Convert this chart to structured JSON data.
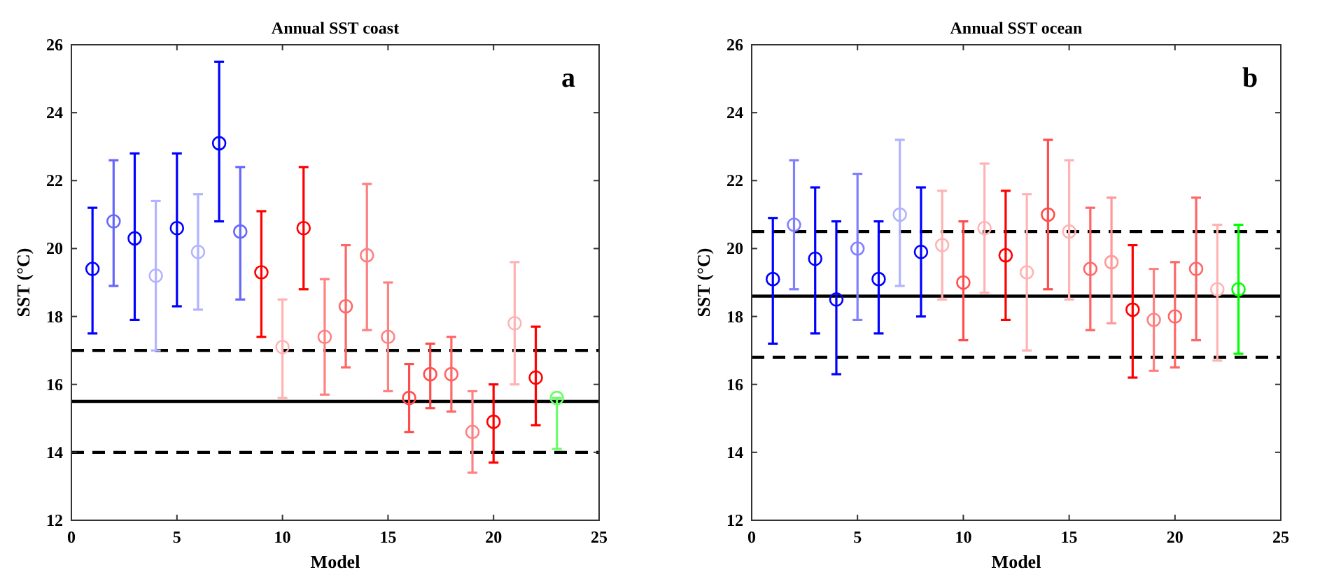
{
  "chart_data": [
    {
      "type": "scatter",
      "title": "Annual SST coast",
      "xlabel": "Model",
      "ylabel": "SST (°C)",
      "annotations": [
        "a"
      ],
      "xlim": [
        0,
        25
      ],
      "xticks": [
        0,
        5,
        10,
        15,
        20,
        25
      ],
      "ylim": [
        12,
        26
      ],
      "yticks": [
        12,
        14,
        16,
        18,
        20,
        22,
        24,
        26
      ],
      "grid": false,
      "marker": "circle",
      "ref_lines": [
        {
          "axis": "y",
          "value": 17,
          "color": "#000000",
          "line_style": "dashed"
        },
        {
          "axis": "y",
          "value": 15.5,
          "color": "#000000",
          "line_style": "solid"
        },
        {
          "axis": "y",
          "value": 14,
          "color": "#000000",
          "line_style": "dashed"
        }
      ],
      "series": [
        {
          "x": [
            1,
            2,
            3,
            4,
            5,
            6,
            7,
            8
          ],
          "values": [
            19.4,
            20.8,
            20.3,
            19.2,
            20.6,
            19.9,
            23.1,
            20.5
          ],
          "errors": [
            [
              17.5,
              21.2
            ],
            [
              18.9,
              22.6
            ],
            [
              17.9,
              22.8
            ],
            [
              17.0,
              21.4
            ],
            [
              18.3,
              22.8
            ],
            [
              18.2,
              21.6
            ],
            [
              20.8,
              25.5
            ],
            [
              18.5,
              22.4
            ]
          ],
          "colors": [
            "#0000ff",
            "#6666ff",
            "#0000ff",
            "#b3b3ff",
            "#0000ff",
            "#b3b3ff",
            "#0000ff",
            "#6666ff"
          ]
        },
        {
          "x": [
            9,
            10,
            11,
            12,
            13,
            14,
            15,
            16,
            17,
            18,
            19,
            20,
            21,
            22
          ],
          "values": [
            19.3,
            17.1,
            20.6,
            17.4,
            18.3,
            19.8,
            17.4,
            15.6,
            16.3,
            16.3,
            14.6,
            14.9,
            17.8,
            16.2
          ],
          "errors": [
            [
              17.4,
              21.1
            ],
            [
              15.6,
              18.5
            ],
            [
              18.8,
              22.4
            ],
            [
              15.7,
              19.1
            ],
            [
              16.5,
              20.1
            ],
            [
              17.6,
              21.9
            ],
            [
              15.8,
              19.0
            ],
            [
              14.6,
              16.6
            ],
            [
              15.3,
              17.2
            ],
            [
              15.2,
              17.4
            ],
            [
              13.4,
              15.8
            ],
            [
              13.7,
              16.0
            ],
            [
              16.0,
              19.6
            ],
            [
              14.8,
              17.7
            ]
          ],
          "colors": [
            "#ff0000",
            "#ffb3b3",
            "#ff0000",
            "#ff8080",
            "#ff6666",
            "#ff8080",
            "#ff8080",
            "#ff4d4d",
            "#ff4d4d",
            "#ff6666",
            "#ff8080",
            "#ff0000",
            "#ffb3b3",
            "#ff0000"
          ]
        },
        {
          "x": [
            23
          ],
          "values": [
            15.6
          ],
          "errors": [
            [
              14.1,
              15.6
            ]
          ],
          "colors": [
            "#66ff66"
          ]
        }
      ]
    },
    {
      "type": "scatter",
      "title": "Annual SST ocean",
      "xlabel": "Model",
      "ylabel": "SST (°C)",
      "annotations": [
        "b"
      ],
      "xlim": [
        0,
        25
      ],
      "xticks": [
        0,
        5,
        10,
        15,
        20,
        25
      ],
      "ylim": [
        12,
        26
      ],
      "yticks": [
        12,
        14,
        16,
        18,
        20,
        22,
        24,
        26
      ],
      "grid": false,
      "marker": "circle",
      "ref_lines": [
        {
          "axis": "y",
          "value": 20.5,
          "color": "#000000",
          "line_style": "dashed"
        },
        {
          "axis": "y",
          "value": 18.6,
          "color": "#000000",
          "line_style": "solid"
        },
        {
          "axis": "y",
          "value": 16.8,
          "color": "#000000",
          "line_style": "dashed"
        }
      ],
      "series": [
        {
          "x": [
            1,
            2,
            3,
            4,
            5,
            6,
            7,
            8
          ],
          "values": [
            19.1,
            20.7,
            19.7,
            18.5,
            20.0,
            19.1,
            21.0,
            19.9
          ],
          "errors": [
            [
              17.2,
              20.9
            ],
            [
              18.8,
              22.6
            ],
            [
              17.5,
              21.8
            ],
            [
              16.3,
              20.8
            ],
            [
              17.9,
              22.2
            ],
            [
              17.5,
              20.8
            ],
            [
              18.9,
              23.2
            ],
            [
              18.0,
              21.8
            ]
          ],
          "colors": [
            "#0000ff",
            "#8080ff",
            "#0000ff",
            "#0000ff",
            "#8080ff",
            "#0000ff",
            "#b3b3ff",
            "#0000ff"
          ]
        },
        {
          "x": [
            9,
            10,
            11,
            12,
            13,
            14,
            15,
            16,
            17,
            18,
            19,
            20,
            21,
            22
          ],
          "values": [
            20.1,
            19.0,
            20.6,
            19.8,
            19.3,
            21.0,
            20.5,
            19.4,
            19.6,
            18.2,
            17.9,
            18.0,
            19.4,
            18.8
          ],
          "errors": [
            [
              18.5,
              21.7
            ],
            [
              17.3,
              20.8
            ],
            [
              18.7,
              22.5
            ],
            [
              17.9,
              21.7
            ],
            [
              17.0,
              21.6
            ],
            [
              18.8,
              23.2
            ],
            [
              18.5,
              22.6
            ],
            [
              17.6,
              21.2
            ],
            [
              17.8,
              21.5
            ],
            [
              16.2,
              20.1
            ],
            [
              16.4,
              19.4
            ],
            [
              16.5,
              19.6
            ],
            [
              17.3,
              21.5
            ],
            [
              16.7,
              20.7
            ]
          ],
          "colors": [
            "#ffb3b3",
            "#ff4d4d",
            "#ffb3b3",
            "#ff0000",
            "#ffb3b3",
            "#ff4d4d",
            "#ffb3b3",
            "#ff6666",
            "#ff9999",
            "#ff0000",
            "#ff8080",
            "#ff6666",
            "#ff6666",
            "#ffb3b3"
          ]
        },
        {
          "x": [
            23
          ],
          "values": [
            18.8
          ],
          "errors": [
            [
              16.9,
              20.7
            ]
          ],
          "colors": [
            "#00ff00"
          ]
        }
      ]
    }
  ]
}
